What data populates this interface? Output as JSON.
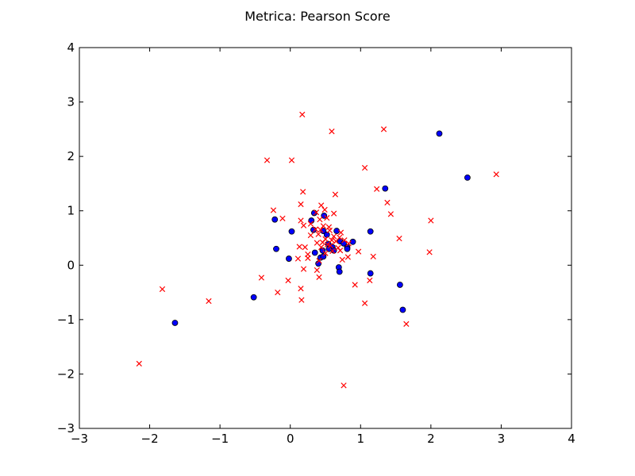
{
  "chart_data": {
    "type": "scatter",
    "title": "Metrica: Pearson Score",
    "xlabel": "",
    "ylabel": "",
    "xlim": [
      -3,
      4
    ],
    "ylim": [
      -3,
      4
    ],
    "xticks": [
      "−3",
      "−2",
      "−1",
      "0",
      "1",
      "2",
      "3",
      "4"
    ],
    "yticks": [
      "−3",
      "−2",
      "−1",
      "0",
      "1",
      "2",
      "3",
      "4"
    ],
    "grid": false,
    "series": [
      {
        "marker": "circle",
        "color": "#0000ff",
        "points": [
          [
            2.12,
            2.42
          ],
          [
            2.52,
            1.61
          ],
          [
            1.35,
            1.41
          ],
          [
            -0.22,
            0.84
          ],
          [
            0.3,
            0.82
          ],
          [
            0.34,
            0.96
          ],
          [
            0.48,
            0.91
          ],
          [
            0.02,
            0.62
          ],
          [
            1.14,
            0.62
          ],
          [
            0.33,
            0.65
          ],
          [
            0.47,
            0.63
          ],
          [
            0.52,
            0.56
          ],
          [
            0.66,
            0.63
          ],
          [
            0.71,
            0.44
          ],
          [
            0.89,
            0.43
          ],
          [
            0.76,
            0.4
          ],
          [
            0.81,
            0.33
          ],
          [
            0.81,
            0.3
          ],
          [
            0.54,
            0.39
          ],
          [
            0.6,
            0.33
          ],
          [
            0.62,
            0.27
          ],
          [
            0.55,
            0.3
          ],
          [
            0.46,
            0.27
          ],
          [
            0.35,
            0.23
          ],
          [
            -0.2,
            0.3
          ],
          [
            -0.02,
            0.12
          ],
          [
            0.43,
            0.14
          ],
          [
            0.47,
            0.16
          ],
          [
            0.4,
            0.03
          ],
          [
            0.69,
            -0.04
          ],
          [
            0.7,
            -0.12
          ],
          [
            1.14,
            -0.15
          ],
          [
            1.56,
            -0.36
          ],
          [
            1.6,
            -0.82
          ],
          [
            -0.52,
            -0.59
          ],
          [
            -1.64,
            -1.06
          ]
        ]
      },
      {
        "marker": "x",
        "color": "#ff0000",
        "points": [
          [
            0.17,
            2.77
          ],
          [
            0.59,
            2.46
          ],
          [
            1.33,
            2.5
          ],
          [
            -0.33,
            1.93
          ],
          [
            0.02,
            1.93
          ],
          [
            1.06,
            1.79
          ],
          [
            2.93,
            1.67
          ],
          [
            1.23,
            1.4
          ],
          [
            0.18,
            1.35
          ],
          [
            0.64,
            1.3
          ],
          [
            1.38,
            1.15
          ],
          [
            0.15,
            1.12
          ],
          [
            0.44,
            1.1
          ],
          [
            -0.24,
            1.01
          ],
          [
            0.49,
            1.02
          ],
          [
            0.37,
            0.97
          ],
          [
            0.62,
            0.95
          ],
          [
            1.43,
            0.94
          ],
          [
            -0.11,
            0.86
          ],
          [
            0.15,
            0.82
          ],
          [
            0.42,
            0.84
          ],
          [
            0.52,
            0.87
          ],
          [
            2.0,
            0.82
          ],
          [
            0.29,
            0.76
          ],
          [
            0.19,
            0.73
          ],
          [
            0.47,
            0.72
          ],
          [
            0.55,
            0.7
          ],
          [
            0.36,
            0.66
          ],
          [
            0.43,
            0.65
          ],
          [
            0.56,
            0.64
          ],
          [
            0.72,
            0.6
          ],
          [
            0.29,
            0.55
          ],
          [
            0.4,
            0.57
          ],
          [
            0.62,
            0.53
          ],
          [
            0.7,
            0.51
          ],
          [
            0.5,
            0.48
          ],
          [
            0.59,
            0.46
          ],
          [
            0.65,
            0.44
          ],
          [
            0.38,
            0.41
          ],
          [
            0.46,
            0.42
          ],
          [
            1.55,
            0.49
          ],
          [
            0.77,
            0.46
          ],
          [
            0.83,
            0.4
          ],
          [
            0.53,
            0.38
          ],
          [
            0.57,
            0.36
          ],
          [
            0.13,
            0.34
          ],
          [
            0.21,
            0.33
          ],
          [
            0.44,
            0.33
          ],
          [
            0.68,
            0.32
          ],
          [
            0.6,
            0.26
          ],
          [
            0.71,
            0.27
          ],
          [
            0.97,
            0.25
          ],
          [
            1.98,
            0.24
          ],
          [
            0.25,
            0.2
          ],
          [
            0.5,
            0.22
          ],
          [
            0.82,
            0.15
          ],
          [
            0.74,
            0.1
          ],
          [
            1.18,
            0.16
          ],
          [
            0.11,
            0.12
          ],
          [
            0.25,
            0.13
          ],
          [
            0.41,
            0.08
          ],
          [
            0.19,
            -0.07
          ],
          [
            0.38,
            -0.09
          ],
          [
            -0.41,
            -0.23
          ],
          [
            0.41,
            -0.22
          ],
          [
            -0.03,
            -0.28
          ],
          [
            1.13,
            -0.28
          ],
          [
            0.92,
            -0.36
          ],
          [
            -0.18,
            -0.5
          ],
          [
            0.15,
            -0.43
          ],
          [
            -1.82,
            -0.44
          ],
          [
            0.16,
            -0.64
          ],
          [
            -1.16,
            -0.66
          ],
          [
            1.06,
            -0.7
          ],
          [
            1.65,
            -1.08
          ],
          [
            -2.15,
            -1.81
          ],
          [
            0.76,
            -2.21
          ]
        ]
      }
    ]
  }
}
